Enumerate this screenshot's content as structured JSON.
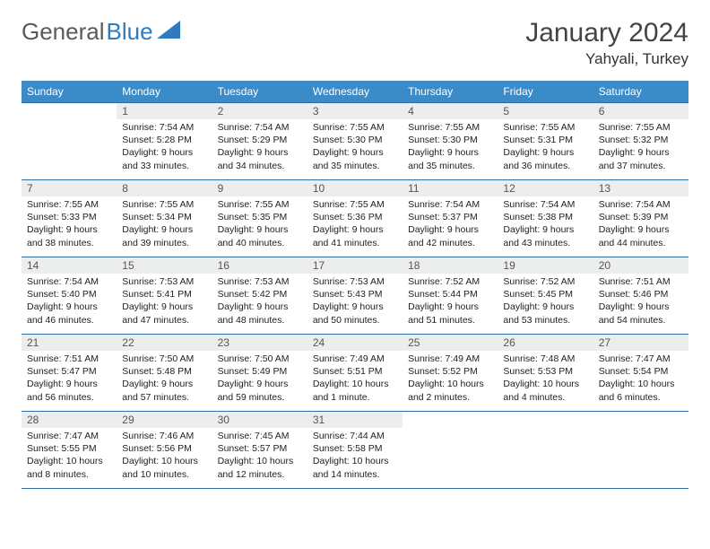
{
  "brand": {
    "word1": "General",
    "word2": "Blue"
  },
  "title": "January 2024",
  "location": "Yahyali, Turkey",
  "colors": {
    "header_bg": "#3b8bc9",
    "rule": "#2e6da4",
    "daynum_bg": "#eceded"
  },
  "weekdays": [
    "Sunday",
    "Monday",
    "Tuesday",
    "Wednesday",
    "Thursday",
    "Friday",
    "Saturday"
  ],
  "weeks": [
    [
      null,
      {
        "num": "1",
        "sunrise": "Sunrise: 7:54 AM",
        "sunset": "Sunset: 5:28 PM",
        "day1": "Daylight: 9 hours",
        "day2": "and 33 minutes."
      },
      {
        "num": "2",
        "sunrise": "Sunrise: 7:54 AM",
        "sunset": "Sunset: 5:29 PM",
        "day1": "Daylight: 9 hours",
        "day2": "and 34 minutes."
      },
      {
        "num": "3",
        "sunrise": "Sunrise: 7:55 AM",
        "sunset": "Sunset: 5:30 PM",
        "day1": "Daylight: 9 hours",
        "day2": "and 35 minutes."
      },
      {
        "num": "4",
        "sunrise": "Sunrise: 7:55 AM",
        "sunset": "Sunset: 5:30 PM",
        "day1": "Daylight: 9 hours",
        "day2": "and 35 minutes."
      },
      {
        "num": "5",
        "sunrise": "Sunrise: 7:55 AM",
        "sunset": "Sunset: 5:31 PM",
        "day1": "Daylight: 9 hours",
        "day2": "and 36 minutes."
      },
      {
        "num": "6",
        "sunrise": "Sunrise: 7:55 AM",
        "sunset": "Sunset: 5:32 PM",
        "day1": "Daylight: 9 hours",
        "day2": "and 37 minutes."
      }
    ],
    [
      {
        "num": "7",
        "sunrise": "Sunrise: 7:55 AM",
        "sunset": "Sunset: 5:33 PM",
        "day1": "Daylight: 9 hours",
        "day2": "and 38 minutes."
      },
      {
        "num": "8",
        "sunrise": "Sunrise: 7:55 AM",
        "sunset": "Sunset: 5:34 PM",
        "day1": "Daylight: 9 hours",
        "day2": "and 39 minutes."
      },
      {
        "num": "9",
        "sunrise": "Sunrise: 7:55 AM",
        "sunset": "Sunset: 5:35 PM",
        "day1": "Daylight: 9 hours",
        "day2": "and 40 minutes."
      },
      {
        "num": "10",
        "sunrise": "Sunrise: 7:55 AM",
        "sunset": "Sunset: 5:36 PM",
        "day1": "Daylight: 9 hours",
        "day2": "and 41 minutes."
      },
      {
        "num": "11",
        "sunrise": "Sunrise: 7:54 AM",
        "sunset": "Sunset: 5:37 PM",
        "day1": "Daylight: 9 hours",
        "day2": "and 42 minutes."
      },
      {
        "num": "12",
        "sunrise": "Sunrise: 7:54 AM",
        "sunset": "Sunset: 5:38 PM",
        "day1": "Daylight: 9 hours",
        "day2": "and 43 minutes."
      },
      {
        "num": "13",
        "sunrise": "Sunrise: 7:54 AM",
        "sunset": "Sunset: 5:39 PM",
        "day1": "Daylight: 9 hours",
        "day2": "and 44 minutes."
      }
    ],
    [
      {
        "num": "14",
        "sunrise": "Sunrise: 7:54 AM",
        "sunset": "Sunset: 5:40 PM",
        "day1": "Daylight: 9 hours",
        "day2": "and 46 minutes."
      },
      {
        "num": "15",
        "sunrise": "Sunrise: 7:53 AM",
        "sunset": "Sunset: 5:41 PM",
        "day1": "Daylight: 9 hours",
        "day2": "and 47 minutes."
      },
      {
        "num": "16",
        "sunrise": "Sunrise: 7:53 AM",
        "sunset": "Sunset: 5:42 PM",
        "day1": "Daylight: 9 hours",
        "day2": "and 48 minutes."
      },
      {
        "num": "17",
        "sunrise": "Sunrise: 7:53 AM",
        "sunset": "Sunset: 5:43 PM",
        "day1": "Daylight: 9 hours",
        "day2": "and 50 minutes."
      },
      {
        "num": "18",
        "sunrise": "Sunrise: 7:52 AM",
        "sunset": "Sunset: 5:44 PM",
        "day1": "Daylight: 9 hours",
        "day2": "and 51 minutes."
      },
      {
        "num": "19",
        "sunrise": "Sunrise: 7:52 AM",
        "sunset": "Sunset: 5:45 PM",
        "day1": "Daylight: 9 hours",
        "day2": "and 53 minutes."
      },
      {
        "num": "20",
        "sunrise": "Sunrise: 7:51 AM",
        "sunset": "Sunset: 5:46 PM",
        "day1": "Daylight: 9 hours",
        "day2": "and 54 minutes."
      }
    ],
    [
      {
        "num": "21",
        "sunrise": "Sunrise: 7:51 AM",
        "sunset": "Sunset: 5:47 PM",
        "day1": "Daylight: 9 hours",
        "day2": "and 56 minutes."
      },
      {
        "num": "22",
        "sunrise": "Sunrise: 7:50 AM",
        "sunset": "Sunset: 5:48 PM",
        "day1": "Daylight: 9 hours",
        "day2": "and 57 minutes."
      },
      {
        "num": "23",
        "sunrise": "Sunrise: 7:50 AM",
        "sunset": "Sunset: 5:49 PM",
        "day1": "Daylight: 9 hours",
        "day2": "and 59 minutes."
      },
      {
        "num": "24",
        "sunrise": "Sunrise: 7:49 AM",
        "sunset": "Sunset: 5:51 PM",
        "day1": "Daylight: 10 hours",
        "day2": "and 1 minute."
      },
      {
        "num": "25",
        "sunrise": "Sunrise: 7:49 AM",
        "sunset": "Sunset: 5:52 PM",
        "day1": "Daylight: 10 hours",
        "day2": "and 2 minutes."
      },
      {
        "num": "26",
        "sunrise": "Sunrise: 7:48 AM",
        "sunset": "Sunset: 5:53 PM",
        "day1": "Daylight: 10 hours",
        "day2": "and 4 minutes."
      },
      {
        "num": "27",
        "sunrise": "Sunrise: 7:47 AM",
        "sunset": "Sunset: 5:54 PM",
        "day1": "Daylight: 10 hours",
        "day2": "and 6 minutes."
      }
    ],
    [
      {
        "num": "28",
        "sunrise": "Sunrise: 7:47 AM",
        "sunset": "Sunset: 5:55 PM",
        "day1": "Daylight: 10 hours",
        "day2": "and 8 minutes."
      },
      {
        "num": "29",
        "sunrise": "Sunrise: 7:46 AM",
        "sunset": "Sunset: 5:56 PM",
        "day1": "Daylight: 10 hours",
        "day2": "and 10 minutes."
      },
      {
        "num": "30",
        "sunrise": "Sunrise: 7:45 AM",
        "sunset": "Sunset: 5:57 PM",
        "day1": "Daylight: 10 hours",
        "day2": "and 12 minutes."
      },
      {
        "num": "31",
        "sunrise": "Sunrise: 7:44 AM",
        "sunset": "Sunset: 5:58 PM",
        "day1": "Daylight: 10 hours",
        "day2": "and 14 minutes."
      },
      null,
      null,
      null
    ]
  ]
}
